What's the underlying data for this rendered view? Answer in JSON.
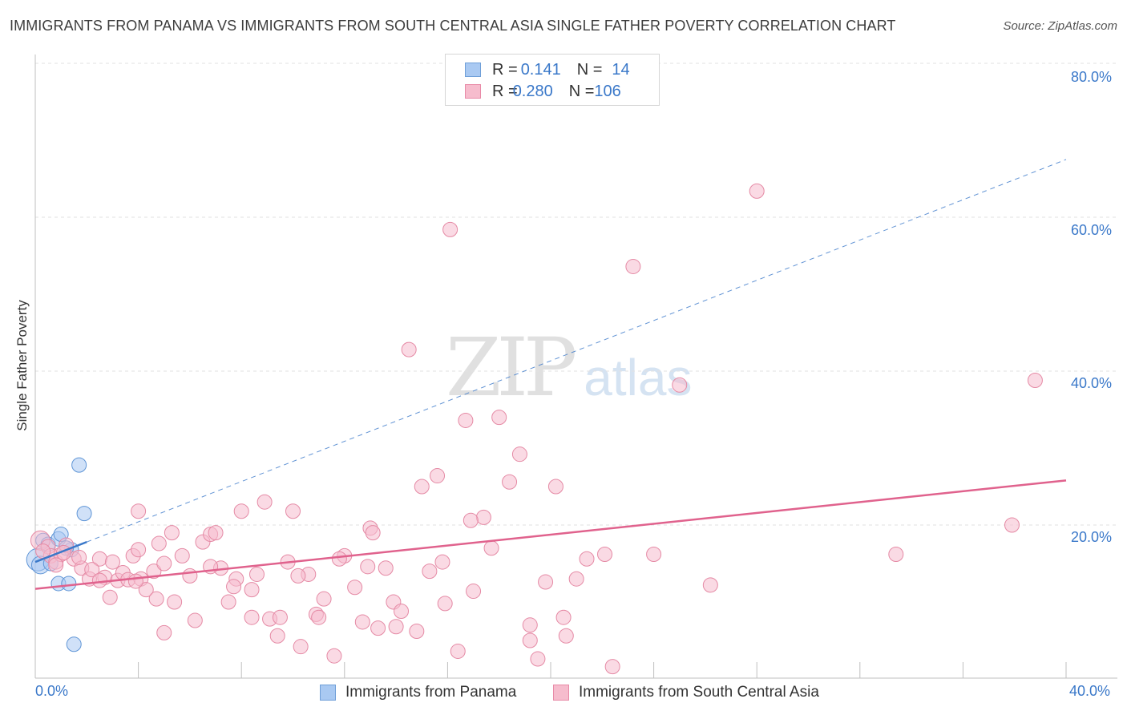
{
  "title": "IMMIGRANTS FROM PANAMA VS IMMIGRANTS FROM SOUTH CENTRAL ASIA SINGLE FATHER POVERTY CORRELATION CHART",
  "source": "Source: ZipAtlas.com",
  "stats": [
    {
      "r_label": "R = ",
      "r_value": "0.141",
      "n_label": "N = ",
      "n_value": "14",
      "color": "#a9c9f2",
      "border": "#6f9fd8"
    },
    {
      "r_label": "R = ",
      "r_value": "0.280",
      "n_label": "N = ",
      "n_value": "106",
      "color": "#f6bccd",
      "border": "#e88aa7"
    }
  ],
  "watermark": {
    "zip": "ZIP",
    "atlas": "atlas"
  },
  "chart_data": {
    "type": "scatter",
    "title": "IMMIGRANTS FROM PANAMA VS IMMIGRANTS FROM SOUTH CENTRAL ASIA SINGLE FATHER POVERTY CORRELATION CHART",
    "xlabel": "",
    "ylabel": "Single Father Poverty",
    "xlim": [
      0,
      40
    ],
    "ylim": [
      0,
      80
    ],
    "x_tick_labels": [
      "0.0%",
      "40.0%"
    ],
    "y_tick_labels": [
      "20.0%",
      "40.0%",
      "60.0%",
      "80.0%"
    ],
    "y_ticks": [
      20,
      40,
      60,
      80
    ],
    "grid": true,
    "legend_position": "bottom-center",
    "series": [
      {
        "name": "Immigrants from Panama",
        "color": "#a9c9f2",
        "stroke": "#5f95d6",
        "trend": {
          "x0": 0,
          "y0": 15.2,
          "x1": 2.0,
          "y1": 17.8,
          "solid_to": 2.0,
          "dashed_x1": 40,
          "dashed_y1": 67.5,
          "color": "#3a78c9"
        },
        "points": [
          [
            0.1,
            15.5,
            14
          ],
          [
            0.2,
            14.8,
            11
          ],
          [
            0.3,
            18.0,
            9
          ],
          [
            0.5,
            17.5,
            9
          ],
          [
            0.6,
            15.0,
            9
          ],
          [
            0.9,
            18.2,
            9
          ],
          [
            1.0,
            18.8,
            9
          ],
          [
            1.4,
            16.8,
            9
          ],
          [
            1.7,
            27.8,
            9
          ],
          [
            1.9,
            21.5,
            9
          ],
          [
            0.9,
            12.4,
            9
          ],
          [
            1.3,
            12.4,
            9
          ],
          [
            1.5,
            4.5,
            9
          ],
          [
            1.2,
            17.0,
            9
          ]
        ]
      },
      {
        "name": "Immigrants from South Central Asia",
        "color": "#f6bccd",
        "stroke": "#e58aa5",
        "trend": {
          "x0": 0,
          "y0": 11.7,
          "x1": 40,
          "y1": 25.8,
          "color": "#e0628d"
        },
        "points": [
          [
            0.2,
            18.0,
            12
          ],
          [
            0.5,
            17.2,
            9
          ],
          [
            0.6,
            16.0,
            9
          ],
          [
            0.8,
            15.2,
            9
          ],
          [
            1.0,
            16.2,
            9
          ],
          [
            1.2,
            17.4,
            9
          ],
          [
            1.5,
            15.6,
            9
          ],
          [
            1.8,
            14.4,
            9
          ],
          [
            2.1,
            13.0,
            9
          ],
          [
            2.5,
            15.6,
            9
          ],
          [
            2.7,
            13.2,
            9
          ],
          [
            3.0,
            15.2,
            9
          ],
          [
            3.2,
            12.8,
            9
          ],
          [
            3.4,
            13.8,
            9
          ],
          [
            3.6,
            12.9,
            9
          ],
          [
            3.8,
            16.0,
            9
          ],
          [
            4.0,
            21.8,
            9
          ],
          [
            4.1,
            13.0,
            9
          ],
          [
            4.3,
            11.6,
            9
          ],
          [
            4.6,
            14.0,
            9
          ],
          [
            4.8,
            17.6,
            9
          ],
          [
            5.0,
            15.0,
            9
          ],
          [
            5.3,
            19.0,
            9
          ],
          [
            5.7,
            16.0,
            9
          ],
          [
            6.0,
            13.4,
            9
          ],
          [
            6.2,
            7.6,
            9
          ],
          [
            6.5,
            17.8,
            9
          ],
          [
            6.8,
            18.8,
            9
          ],
          [
            7.2,
            14.4,
            9
          ],
          [
            7.5,
            10.0,
            9
          ],
          [
            7.8,
            13.0,
            9
          ],
          [
            8.0,
            21.8,
            9
          ],
          [
            8.4,
            11.6,
            9
          ],
          [
            8.6,
            13.6,
            9
          ],
          [
            8.9,
            23.0,
            9
          ],
          [
            9.1,
            7.8,
            9
          ],
          [
            9.4,
            5.6,
            9
          ],
          [
            9.8,
            15.2,
            9
          ],
          [
            10.0,
            21.8,
            9
          ],
          [
            10.3,
            4.2,
            9
          ],
          [
            10.6,
            13.6,
            9
          ],
          [
            10.9,
            8.4,
            9
          ],
          [
            11.2,
            10.4,
            9
          ],
          [
            11.6,
            3.0,
            9
          ],
          [
            12.0,
            16.0,
            9
          ],
          [
            12.4,
            11.9,
            9
          ],
          [
            12.7,
            7.4,
            9
          ],
          [
            13.0,
            19.6,
            9
          ],
          [
            13.3,
            6.6,
            9
          ],
          [
            13.6,
            14.4,
            9
          ],
          [
            13.9,
            10.0,
            9
          ],
          [
            14.2,
            8.8,
            9
          ],
          [
            14.5,
            42.8,
            9
          ],
          [
            14.8,
            6.2,
            9
          ],
          [
            15.0,
            25.0,
            9
          ],
          [
            15.3,
            14.0,
            9
          ],
          [
            15.6,
            26.4,
            9
          ],
          [
            15.9,
            9.8,
            9
          ],
          [
            16.1,
            58.4,
            9
          ],
          [
            16.4,
            3.6,
            9
          ],
          [
            16.7,
            33.6,
            9
          ],
          [
            17.0,
            11.4,
            9
          ],
          [
            17.4,
            21.0,
            9
          ],
          [
            17.7,
            17.0,
            9
          ],
          [
            18.0,
            34.0,
            9
          ],
          [
            18.4,
            25.6,
            9
          ],
          [
            18.8,
            29.2,
            9
          ],
          [
            19.2,
            7.0,
            9
          ],
          [
            19.5,
            2.6,
            9
          ],
          [
            19.8,
            12.6,
            9
          ],
          [
            20.2,
            25.0,
            9
          ],
          [
            20.6,
            5.6,
            9
          ],
          [
            21.0,
            13.0,
            9
          ],
          [
            21.4,
            15.6,
            9
          ],
          [
            22.1,
            16.2,
            9
          ],
          [
            22.4,
            1.6,
            9
          ],
          [
            23.2,
            53.6,
            9
          ],
          [
            24.0,
            16.2,
            9
          ],
          [
            25.0,
            38.2,
            9
          ],
          [
            26.2,
            12.2,
            9
          ],
          [
            28.0,
            63.4,
            9
          ],
          [
            33.4,
            16.2,
            9
          ],
          [
            37.9,
            20.0,
            9
          ],
          [
            38.8,
            38.8,
            9
          ],
          [
            5.4,
            10.0,
            9
          ],
          [
            6.8,
            14.6,
            9
          ],
          [
            10.2,
            13.4,
            9
          ],
          [
            8.4,
            8.0,
            9
          ],
          [
            11.8,
            15.6,
            9
          ],
          [
            13.1,
            19.0,
            9
          ],
          [
            14.0,
            6.8,
            9
          ],
          [
            15.8,
            15.2,
            9
          ],
          [
            19.2,
            5.0,
            9
          ],
          [
            2.9,
            10.6,
            9
          ],
          [
            3.9,
            12.7,
            9
          ],
          [
            0.8,
            14.8,
            9
          ],
          [
            1.7,
            15.8,
            9
          ],
          [
            2.2,
            14.2,
            9
          ],
          [
            0.3,
            16.6,
            9
          ],
          [
            4.7,
            10.4,
            9
          ],
          [
            5.0,
            6.0,
            9
          ],
          [
            7.0,
            19.0,
            9
          ],
          [
            9.5,
            8.0,
            9
          ],
          [
            11.0,
            8.0,
            9
          ],
          [
            16.9,
            20.6,
            9
          ],
          [
            20.5,
            8.0,
            9
          ],
          [
            2.5,
            12.8,
            9
          ],
          [
            4.0,
            16.8,
            9
          ],
          [
            7.7,
            12.0,
            9
          ],
          [
            12.9,
            14.6,
            9
          ],
          [
            1.1,
            16.4,
            9
          ]
        ]
      }
    ]
  },
  "legend": [
    {
      "label": "Immigrants from Panama",
      "color": "#a9c9f2",
      "border": "#6f9fd8"
    },
    {
      "label": "Immigrants from South Central Asia",
      "color": "#f6bccd",
      "border": "#e88aa7"
    }
  ]
}
